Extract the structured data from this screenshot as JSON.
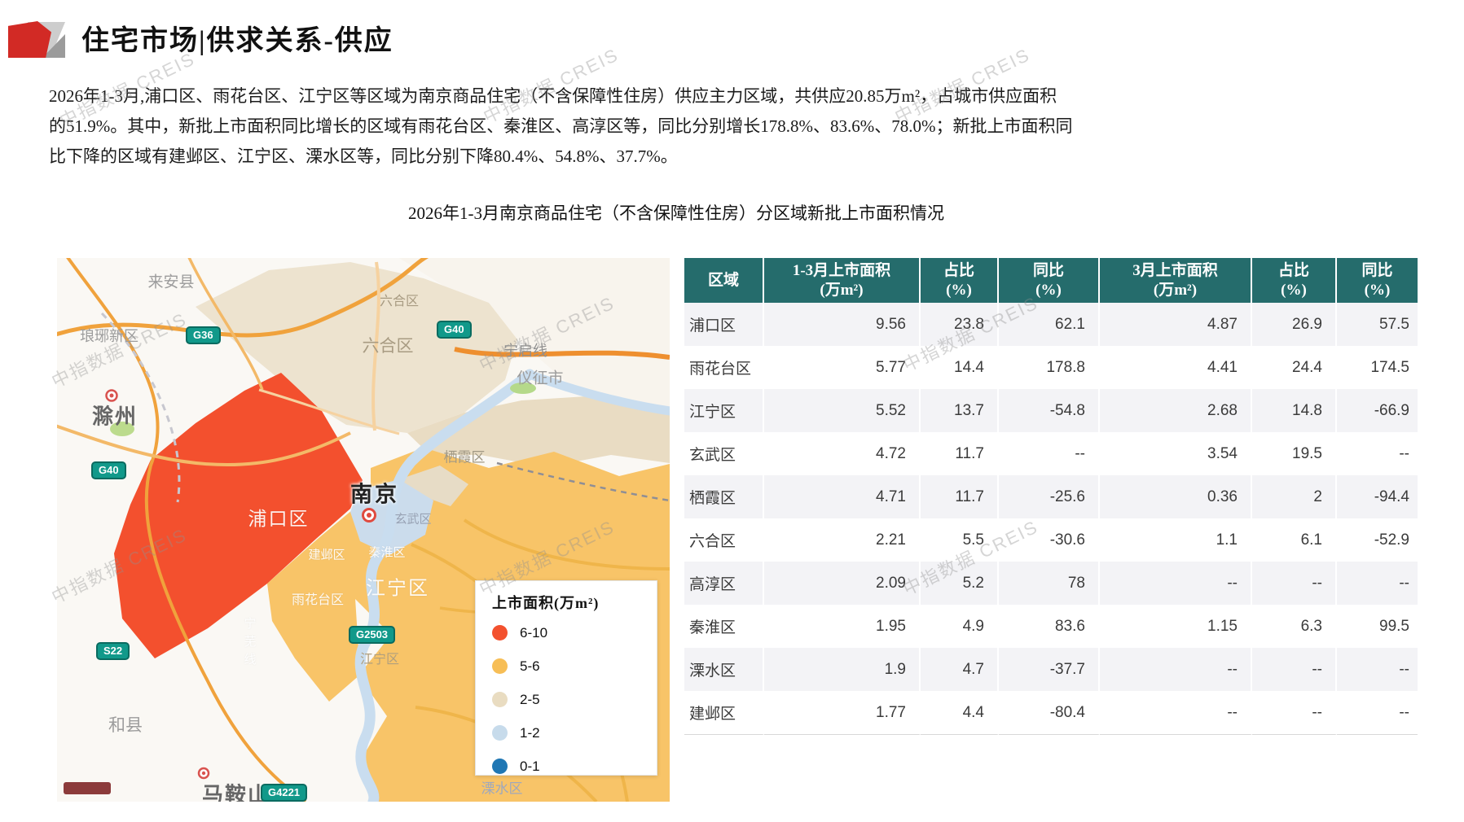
{
  "page": {
    "title": "住宅市场|供求关系-供应"
  },
  "summary_lines": [
    "2026年1-3月,浦口区、雨花台区、江宁区等区域为南京商品住宅（不含保障性住房）供应主力区域，共供应20.85万m²，占城市供应面积",
    "的51.9%。其中，新批上市面积同比增长的区域有雨花台区、秦淮区、高淳区等，同比分别增长178.8%、83.6%、78.0%；新批上市面积同",
    "比下降的区域有建邺区、江宁区、溧水区等，同比分别下降80.4%、54.8%、37.7%。"
  ],
  "chart_title": "2026年1-3月南京商品住宅（不含保障性住房）分区域新批上市面积情况",
  "watermark": "中指数据 CREIS",
  "colors": {
    "header_teal": "#256C6C",
    "title_red": "#D22A25",
    "row_stripe": "#F3F3F6",
    "map_red": "#F3502E",
    "map_yellow": "#F8C468",
    "map_tan": "#EDE3CF",
    "map_lightblue": "#CBDCEC"
  },
  "map": {
    "legend": {
      "title": "上市面积(万m²)",
      "items": [
        {
          "label": "6-10",
          "color": "#F3512E"
        },
        {
          "label": "5-6",
          "color": "#F7BE56"
        },
        {
          "label": "2-5",
          "color": "#E9DCC1"
        },
        {
          "label": "1-2",
          "color": "#C7DBEB"
        },
        {
          "label": "0-1",
          "color": "#2077B4"
        }
      ]
    },
    "badges": {
      "g36": "G36",
      "g40a": "G40",
      "g40b": "G40",
      "s22": "S22",
      "g2503": "G2503",
      "g4221": "G4221"
    },
    "labels": {
      "laianxian": "来安县",
      "langyaxinqu": "琅琊新区",
      "chuzhou": "滁州",
      "luhe_far": "六合区",
      "luhe": "六合区",
      "ningqixian": "宁启线",
      "yizhengshi": "仪征市",
      "qixia": "栖霞区",
      "nanjing": "南京",
      "xuanwu": "玄武区",
      "pukou": "浦口区",
      "jianye": "建邺区",
      "qinhuai": "秦淮区",
      "yuhuatai": "雨花台区",
      "jiangning_big": "江宁区",
      "jiangning_small": "江宁区",
      "ningwuxian": "宁芜线",
      "hexian": "和县",
      "maanshan": "马鞍山",
      "lishui": "溧水区"
    }
  },
  "table": {
    "columns": [
      {
        "label": "区域",
        "unit": ""
      },
      {
        "label": "1-3月上市面积",
        "unit": "(万m²)"
      },
      {
        "label": "占比",
        "unit": "(%)"
      },
      {
        "label": "同比",
        "unit": "(%)"
      },
      {
        "label": "3月上市面积",
        "unit": "(万m²)"
      },
      {
        "label": "占比",
        "unit": "(%)"
      },
      {
        "label": "同比",
        "unit": "(%)"
      }
    ],
    "rows": [
      [
        "浦口区",
        "9.56",
        "23.8",
        "62.1",
        "4.87",
        "26.9",
        "57.5"
      ],
      [
        "雨花台区",
        "5.77",
        "14.4",
        "178.8",
        "4.41",
        "24.4",
        "174.5"
      ],
      [
        "江宁区",
        "5.52",
        "13.7",
        "-54.8",
        "2.68",
        "14.8",
        "-66.9"
      ],
      [
        "玄武区",
        "4.72",
        "11.7",
        "--",
        "3.54",
        "19.5",
        "--"
      ],
      [
        "栖霞区",
        "4.71",
        "11.7",
        "-25.6",
        "0.36",
        "2",
        "-94.4"
      ],
      [
        "六合区",
        "2.21",
        "5.5",
        "-30.6",
        "1.1",
        "6.1",
        "-52.9"
      ],
      [
        "高淳区",
        "2.09",
        "5.2",
        "78",
        "--",
        "--",
        "--"
      ],
      [
        "秦淮区",
        "1.95",
        "4.9",
        "83.6",
        "1.15",
        "6.3",
        "99.5"
      ],
      [
        "溧水区",
        "1.9",
        "4.7",
        "-37.7",
        "--",
        "--",
        "--"
      ],
      [
        "建邺区",
        "1.77",
        "4.4",
        "-80.4",
        "--",
        "--",
        "--"
      ]
    ]
  }
}
